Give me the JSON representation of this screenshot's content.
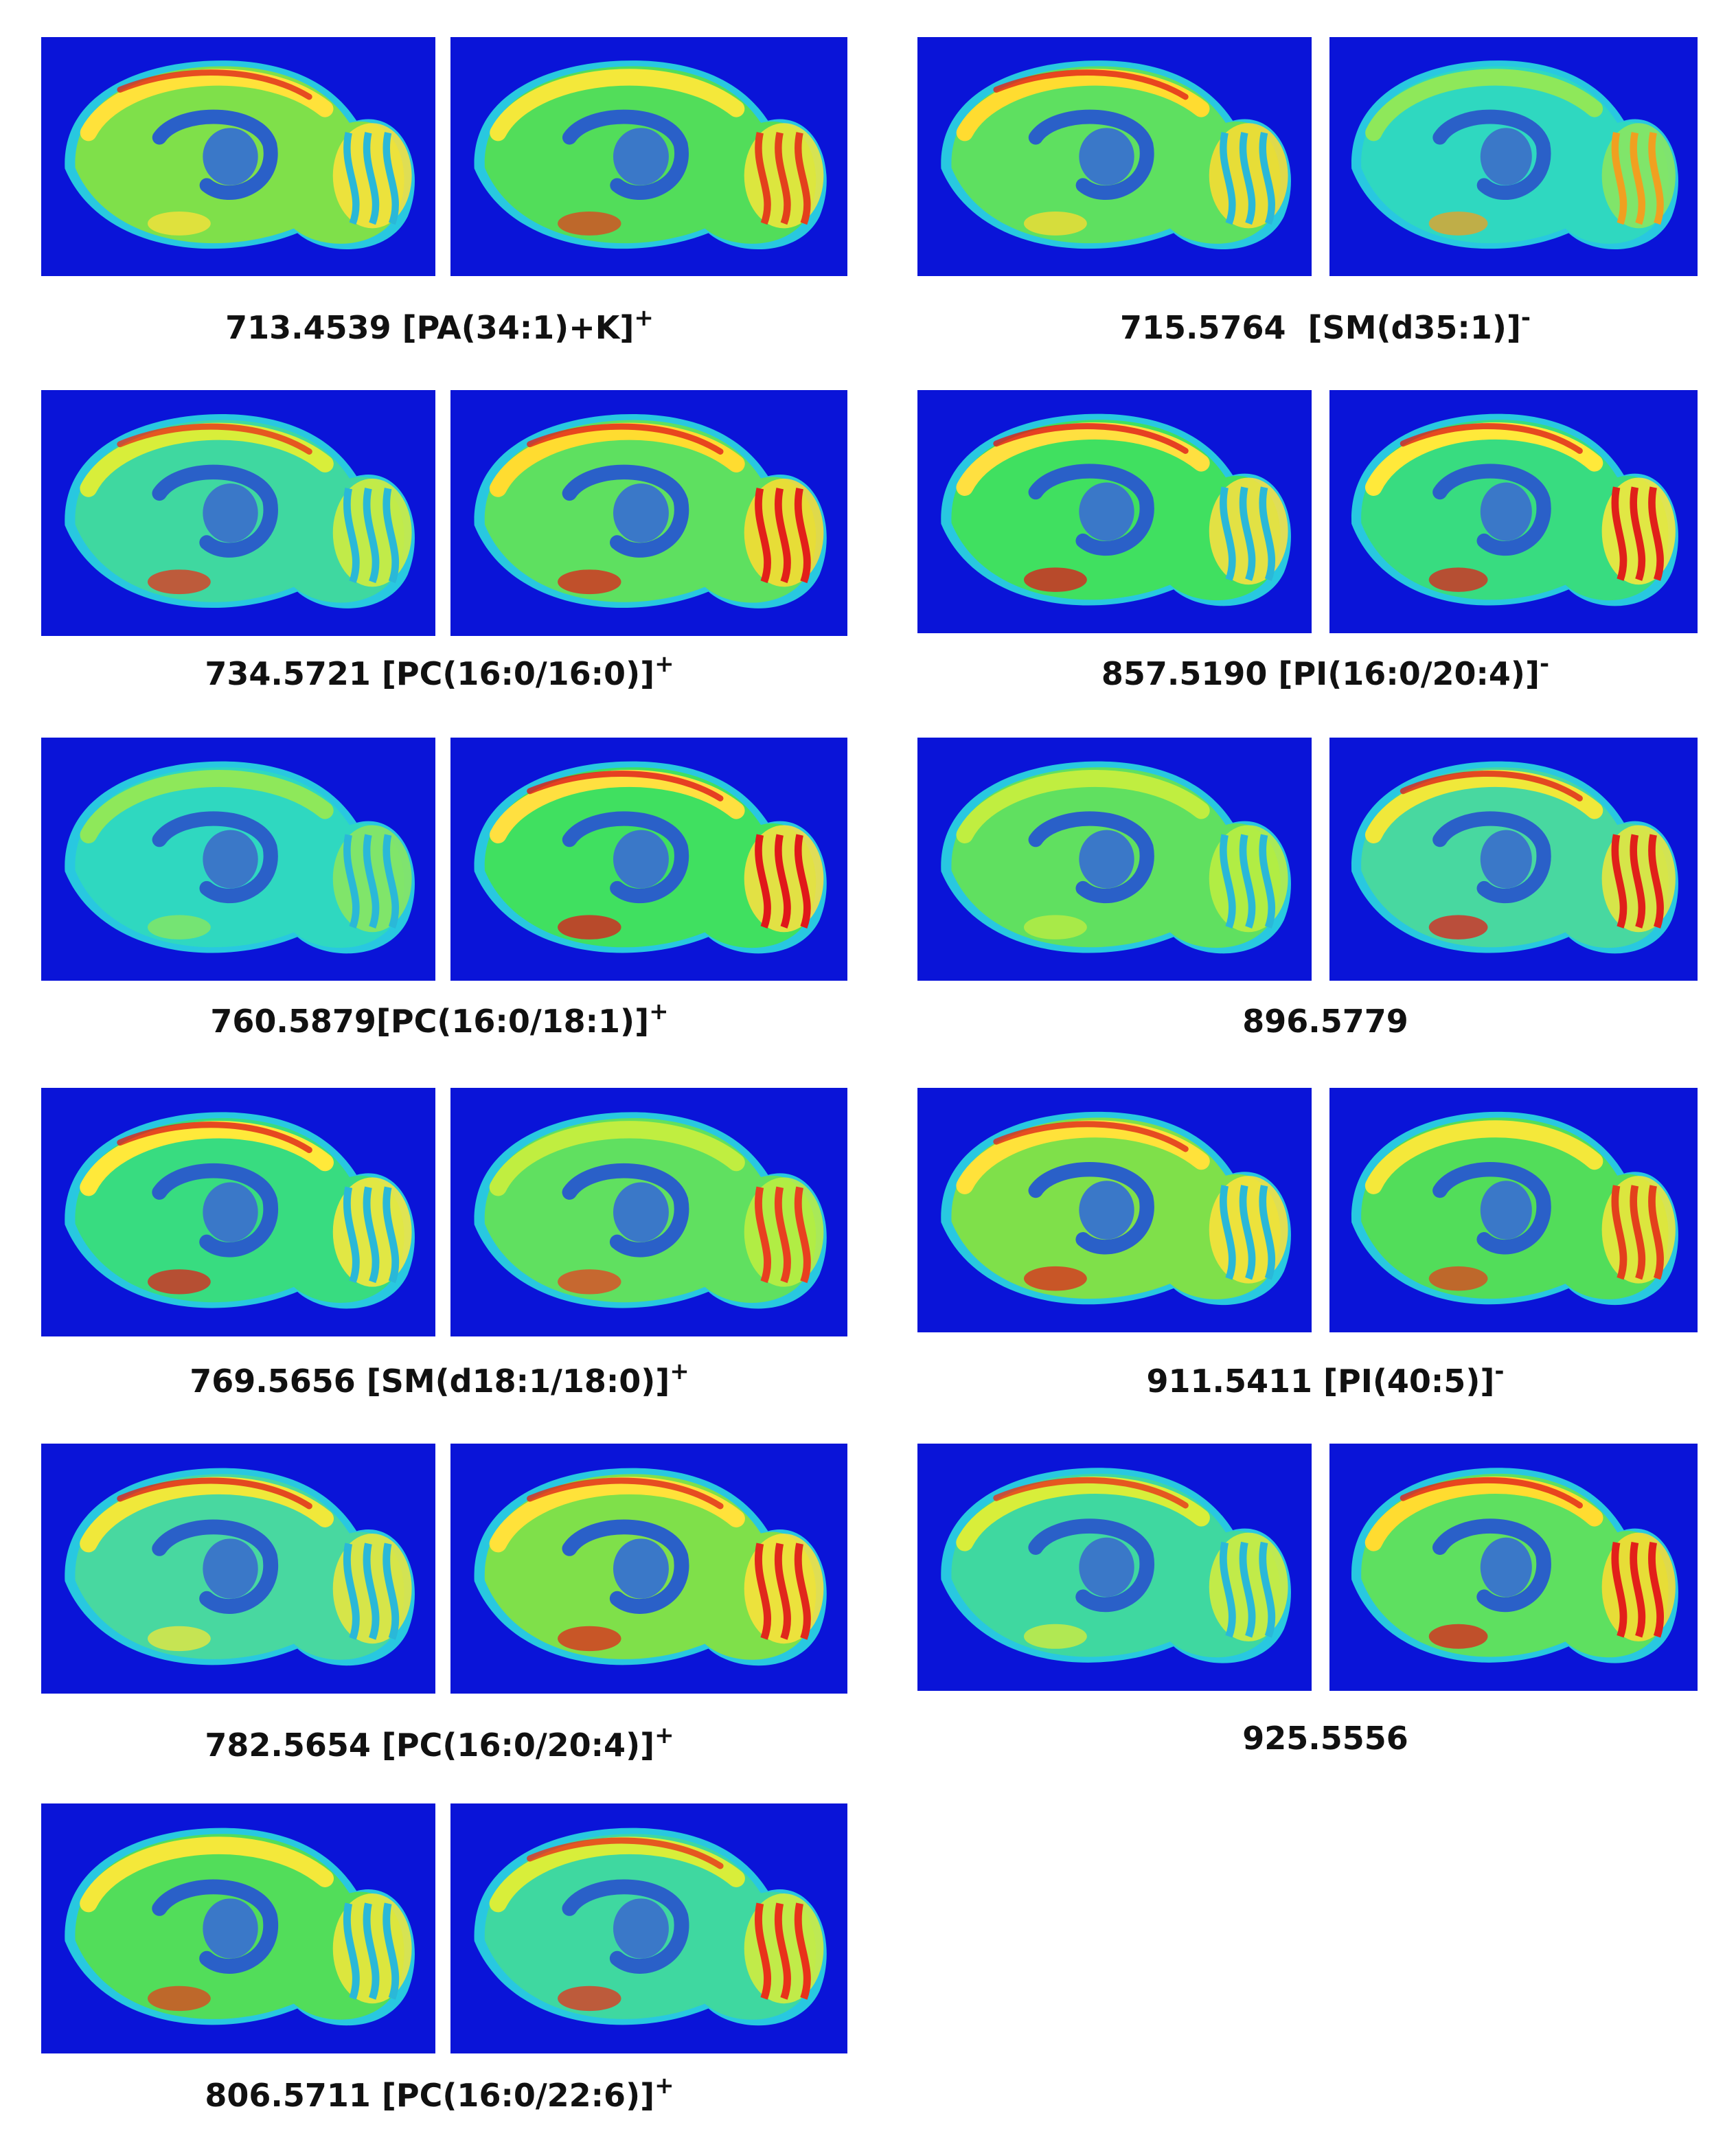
{
  "panels": [
    {
      "label": "713.4539 [PA(34:1)+K]",
      "charge": "+"
    },
    {
      "label": "734.5721 [PC(16:0/16:0)]",
      "charge": "+"
    },
    {
      "label": "760.5879[PC(16:0/18:1)]",
      "charge": "+"
    },
    {
      "label": "769.5656 [SM(d18:1/18:0)]",
      "charge": "+"
    },
    {
      "label": "782.5654 [PC(16:0/20:4)]",
      "charge": "+"
    },
    {
      "label": "806.5711 [PC(16:0/22:6)]",
      "charge": "+"
    },
    {
      "label": "715.5764  [SM(d35:1)]",
      "charge": "-"
    },
    {
      "label": "857.5190 [PI(16:0/20:4)]",
      "charge": "-"
    },
    {
      "label": "896.5779"
    },
    {
      "label": "911.5411 [PI(40:5)]",
      "charge": "-"
    },
    {
      "label": "925.5556"
    }
  ]
}
